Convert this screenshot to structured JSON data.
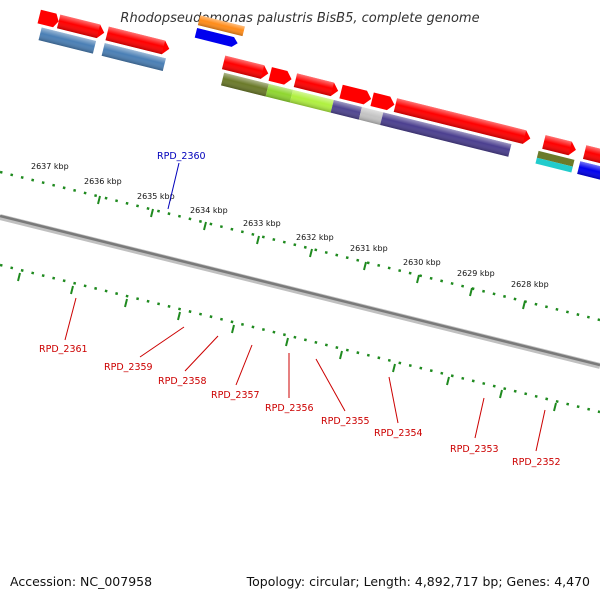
{
  "title": "Rhodopseudomonas palustris BisB5, complete genome",
  "footer": {
    "accession": "Accession: NC_007958",
    "summary": "Topology: circular; Length: 4,892,717 bp; Genes: 4,470"
  },
  "colors": {
    "backbone": "#8c8c8c",
    "tick": "#1f8a1f",
    "label_red": "#cc0000",
    "label_blue": "#0000bb",
    "forward_gene": "#ff0000",
    "RPD_2361": "#4a7fb5",
    "RPD_2360_top": "#ff8c1a",
    "RPD_2360_bottom": "#0000ee",
    "RPD_2359": "#6b7a2a",
    "RPD_2358": "#8fd630",
    "RPD_2357": "#b0f040",
    "RPD_2356": "#4f4590",
    "RPD_2355": "#c4c4c4",
    "RPD_2354": "#4b3f8f",
    "RPD_2353_top": "#6b7a2a",
    "RPD_2353_bottom": "#22cccc",
    "RPD_2352": "#0000ee"
  },
  "scale_labels": [
    "2637 kbp",
    "2636 kbp",
    "2635 kbp",
    "2634 kbp",
    "2633 kbp",
    "2632 kbp",
    "2631 kbp",
    "2630 kbp",
    "2629 kbp",
    "2628 kbp"
  ],
  "gene_labels": [
    "RPD_2360",
    "RPD_2361",
    "RPD_2359",
    "RPD_2358",
    "RPD_2357",
    "RPD_2356",
    "RPD_2355",
    "RPD_2354",
    "RPD_2353",
    "RPD_2352"
  ]
}
